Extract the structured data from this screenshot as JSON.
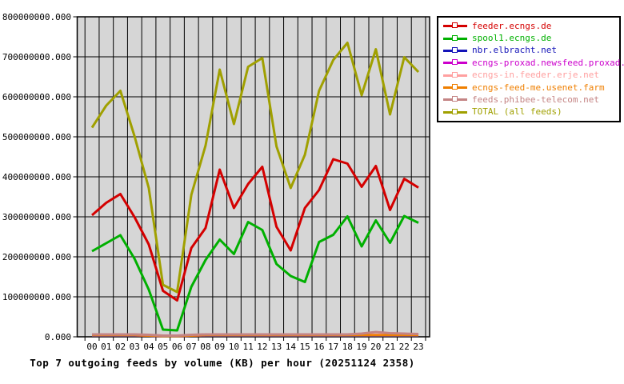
{
  "title": "Top 7 outgoing feeds by volume (KB) per hour (20251124 2358)",
  "chart_data": {
    "type": "line",
    "value_unit": "KB",
    "values_scale_note": "series values are in millions of KB (multiply by 1000000 to match axis labels)",
    "x_ticks": [
      "00",
      "01",
      "02",
      "03",
      "04",
      "05",
      "06",
      "07",
      "08",
      "09",
      "10",
      "11",
      "12",
      "13",
      "14",
      "15",
      "16",
      "17",
      "18",
      "19",
      "20",
      "21",
      "22",
      "23"
    ],
    "y_ticks": [
      "0.000",
      "100000000.000",
      "200000000.000",
      "300000000.000",
      "400000000.000",
      "500000000.000",
      "600000000.000",
      "700000000.000",
      "800000000.000"
    ],
    "ylim": [
      0,
      800000000
    ],
    "grid": true,
    "legend_position": "top-right",
    "plot_bg": "#d6d6d6",
    "grid_color": "#000000",
    "series": [
      {
        "name": "feeder.ecngs.de",
        "color": "#d40000",
        "values": [
          304,
          335,
          357,
          299,
          231,
          115,
          91,
          222,
          272,
          418,
          322,
          382,
          425,
          275,
          216,
          322,
          367,
          444,
          433,
          375,
          427,
          317,
          395,
          373
        ]
      },
      {
        "name": "spool1.ecngs.de",
        "color": "#00b000",
        "values": [
          214,
          234,
          254,
          195,
          118,
          18,
          16,
          125,
          192,
          243,
          207,
          287,
          267,
          182,
          152,
          137,
          237,
          255,
          301,
          226,
          291,
          235,
          302,
          285
        ]
      },
      {
        "name": "nbr.elbracht.net",
        "color": "#1414b8",
        "values": [
          3,
          3,
          3,
          3,
          3,
          2,
          2,
          3,
          3,
          3,
          3,
          3,
          3,
          3,
          3,
          3,
          3,
          3,
          3,
          3,
          3,
          3,
          3,
          3
        ]
      },
      {
        "name": "ecngs-proxad.newsfeed.proxad.net",
        "color": "#cc00cc",
        "values": [
          4,
          4,
          4,
          4,
          3,
          2,
          2,
          3,
          4,
          4,
          4,
          4,
          4,
          4,
          4,
          4,
          4,
          4,
          4,
          4,
          4,
          4,
          4,
          4
        ]
      },
      {
        "name": "ecngs-in.feeder.erje.net",
        "color": "#ffa0a0",
        "values": [
          5,
          5,
          5,
          5,
          4,
          3,
          3,
          4,
          5,
          5,
          5,
          5,
          5,
          5,
          5,
          5,
          5,
          5,
          5,
          5,
          5,
          5,
          5,
          5
        ]
      },
      {
        "name": "ecngs-feed-me.usenet.farm",
        "color": "#ef7f00",
        "values": [
          4,
          4,
          4,
          4,
          3,
          2,
          2,
          3,
          4,
          4,
          4,
          4,
          4,
          4,
          4,
          4,
          4,
          4,
          4,
          4,
          4,
          4,
          4,
          4
        ]
      },
      {
        "name": "feeds.phibee-telecom.net",
        "color": "#c48484",
        "values": [
          6,
          6,
          6,
          6,
          5,
          3,
          3,
          5,
          6,
          6,
          6,
          6,
          6,
          6,
          6,
          6,
          6,
          6,
          6,
          8,
          12,
          9,
          8,
          7
        ]
      },
      {
        "name": "TOTAL (all feeds)",
        "color": "#a0a000",
        "values": [
          523,
          578,
          615,
          501,
          372,
          130,
          112,
          355,
          478,
          668,
          532,
          675,
          697,
          476,
          372,
          455,
          615,
          692,
          735,
          604,
          719,
          556,
          699,
          662
        ]
      }
    ]
  }
}
